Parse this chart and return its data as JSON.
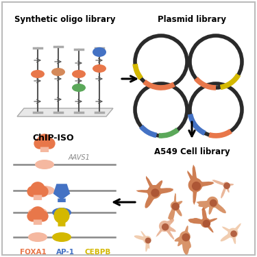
{
  "bg_color": "#ffffff",
  "text_top_left": "Synthetic oligo library",
  "text_top_right": "Plasmid library",
  "text_bottom_left": "ChIP-ISO",
  "text_bottom_right": "A549 Cell library",
  "text_aavs1": "AAVS1",
  "label_foxa1": "FOXA1",
  "label_ap1": "AP-1",
  "label_cebpb": "CEBPB",
  "color_foxa1": "#E8774A",
  "color_foxa1_light": "#F5B8A0",
  "color_ap1": "#4472C4",
  "color_cebpb": "#D4B800",
  "color_orange": "#E8774A",
  "color_orange2": "#D4895A",
  "color_green": "#5BA85A",
  "color_blue": "#4472C4",
  "color_line": "#888888",
  "color_plasmid_ring": "#2a2a2a",
  "strand_color": "#555555",
  "platform_face": "#e8e8e8",
  "platform_edge": "#aaaaaa",
  "cap_color": "#aaaaaa",
  "cell_dark": "#C97040",
  "cell_mid": "#D4895A",
  "cell_light": "#E8B090",
  "cell_pale": "#F0C8A8",
  "nucleus_color": "#A85030",
  "arrow_lw": 2.2
}
